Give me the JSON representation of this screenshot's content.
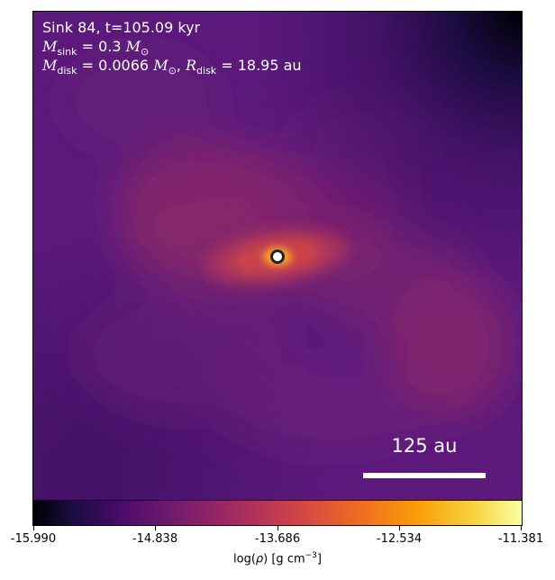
{
  "info": {
    "line1": "Sink 84, t=105.09 kyr",
    "msink_symbol": "M",
    "msink_sub": "sink",
    "msink_value": " = 0.3 ",
    "msink_unit": "M",
    "msink_unit_sub": "⊙",
    "mdisk_symbol": "M",
    "mdisk_sub": "disk",
    "mdisk_value": " = 0.0066 ",
    "mdisk_unit": "M",
    "mdisk_unit_sub": "⊙",
    "rdisk_sep": ", ",
    "rdisk_symbol": "R",
    "rdisk_sub": "disk",
    "rdisk_value": " = 18.95 au"
  },
  "scalebar": {
    "label": "125 au"
  },
  "colorbar": {
    "ticks": [
      "-15.990",
      "-14.838",
      "-13.686",
      "-12.534",
      "-11.381"
    ],
    "label_prefix": "log(",
    "label_rho": "ρ",
    "label_mid": ") [g cm",
    "label_exp": "−3",
    "label_suffix": "]"
  },
  "colors": {
    "background_purple": "#5a1a7a",
    "sink_marker": "#ffffff",
    "sink_outline": "#222222"
  }
}
